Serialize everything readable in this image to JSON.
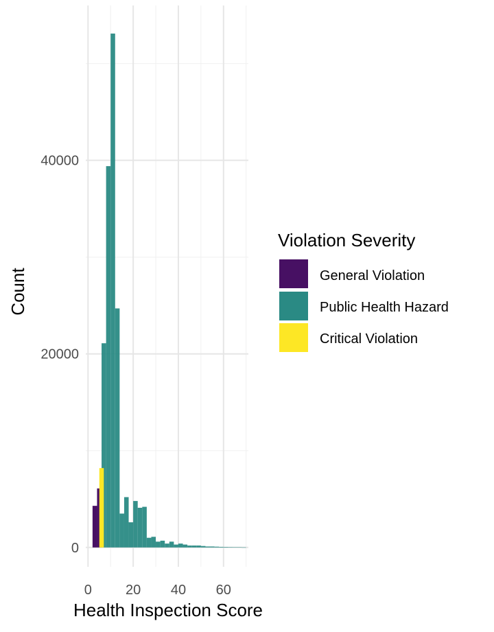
{
  "chart_data": {
    "type": "bar",
    "xlabel": "Health Inspection Score",
    "ylabel": "Count",
    "xlim": [
      -1,
      71
    ],
    "ylim": [
      -2000,
      56000
    ],
    "x_ticks": [
      0,
      20,
      40,
      60
    ],
    "y_ticks": [
      0,
      20000,
      40000
    ],
    "x_minor_ticks": [
      10,
      30,
      50,
      70
    ],
    "y_minor_ticks": [
      10000,
      30000,
      50000
    ],
    "bin_width": 2,
    "grid": true,
    "legend": {
      "title": "Violation Severity",
      "position": "right",
      "entries": [
        {
          "name": "General Violation",
          "color": "#471063"
        },
        {
          "name": "Public Health Hazard",
          "color": "#2a8a84"
        },
        {
          "name": "Critical Violation",
          "color": "#fde725"
        }
      ]
    },
    "series": [
      {
        "name": "General Violation",
        "x": [
          3,
          5
        ],
        "values": [
          4300,
          6100
        ]
      },
      {
        "name": "Critical Violation",
        "x": [
          6
        ],
        "values": [
          8200
        ]
      },
      {
        "name": "Public Health Hazard",
        "x": [
          7,
          9,
          11,
          13,
          15,
          17,
          19,
          21,
          23,
          25,
          27,
          29,
          31,
          33,
          35,
          37,
          39,
          41,
          43,
          45,
          47,
          49,
          51,
          53,
          55,
          57,
          59,
          61,
          63,
          65,
          67,
          69
        ],
        "values": [
          21100,
          39400,
          53100,
          24700,
          3500,
          5200,
          2600,
          4800,
          4100,
          4200,
          1000,
          1100,
          600,
          700,
          400,
          600,
          300,
          400,
          300,
          200,
          200,
          200,
          150,
          100,
          100,
          80,
          60,
          50,
          40,
          30,
          20,
          10
        ]
      }
    ]
  }
}
